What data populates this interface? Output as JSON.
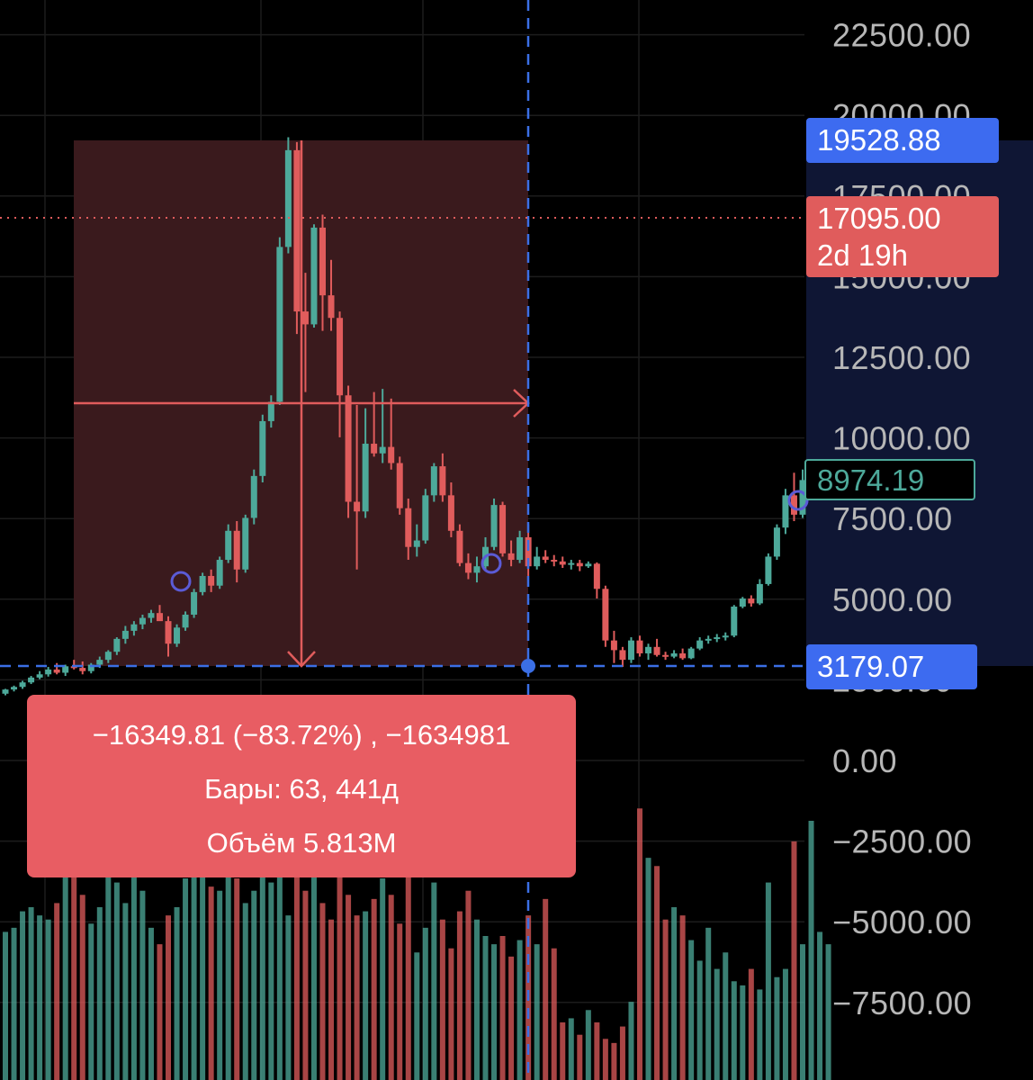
{
  "colors": {
    "background": "#000000",
    "up": "#4da99a",
    "down": "#e05c5c",
    "range_fill": "#3a1a1d",
    "crosshair": "#3b6fe5",
    "price_axis_bg": "#0f1634",
    "tag_blue": "#3d6bf0",
    "tag_red": "#e05c5c",
    "measure_box": "#e85d63",
    "axis_text": "#b7b7b7"
  },
  "price_axis": {
    "ticks": [
      "22500.00",
      "20000.00",
      "17500.00",
      "15000.00",
      "12500.00",
      "10000.00",
      "7500.00",
      "5000.00",
      "2500.00",
      "0.00",
      "−2500.00",
      "−5000.00",
      "−7500.00"
    ]
  },
  "tags": {
    "crosshair_top": "19528.88",
    "last_price": "17095.00",
    "countdown": "2d 19h",
    "current_price": "8974.19",
    "crosshair_bottom": "3179.07"
  },
  "measure": {
    "change": "−16349.81 (−83.72%) , −1634981",
    "bars": "Бары: 63, 441д",
    "volume": "Объём 5.813M"
  },
  "chart_data": {
    "type": "candlestick",
    "y_axis": {
      "min": -7500,
      "max": 22500,
      "tick_step": 2500
    },
    "measure_range": {
      "start_price": 19528.88,
      "end_price": 3179.07,
      "bars": 63,
      "change": -16349.81,
      "change_pct": -83.72
    },
    "last_price": 17095.0,
    "current_price": 8974.19,
    "candles": [
      {
        "o": 2350,
        "h": 2500,
        "l": 2300,
        "c": 2480
      },
      {
        "o": 2480,
        "h": 2600,
        "l": 2420,
        "c": 2560
      },
      {
        "o": 2560,
        "h": 2750,
        "l": 2500,
        "c": 2700
      },
      {
        "o": 2700,
        "h": 2900,
        "l": 2650,
        "c": 2850
      },
      {
        "o": 2850,
        "h": 3050,
        "l": 2800,
        "c": 2950
      },
      {
        "o": 2950,
        "h": 3180,
        "l": 2880,
        "c": 3100
      },
      {
        "o": 3100,
        "h": 3300,
        "l": 2950,
        "c": 3000
      },
      {
        "o": 3000,
        "h": 3250,
        "l": 2900,
        "c": 3200
      },
      {
        "o": 3200,
        "h": 3400,
        "l": 3100,
        "c": 3150
      },
      {
        "o": 3150,
        "h": 3350,
        "l": 2950,
        "c": 3050
      },
      {
        "o": 3050,
        "h": 3300,
        "l": 2980,
        "c": 3250
      },
      {
        "o": 3250,
        "h": 3500,
        "l": 3150,
        "c": 3400
      },
      {
        "o": 3400,
        "h": 3700,
        "l": 3300,
        "c": 3650
      },
      {
        "o": 3650,
        "h": 4100,
        "l": 3550,
        "c": 4050
      },
      {
        "o": 4050,
        "h": 4450,
        "l": 3900,
        "c": 4300
      },
      {
        "o": 4300,
        "h": 4600,
        "l": 4150,
        "c": 4500
      },
      {
        "o": 4500,
        "h": 4800,
        "l": 4350,
        "c": 4700
      },
      {
        "o": 4700,
        "h": 4950,
        "l": 4550,
        "c": 4850
      },
      {
        "o": 4850,
        "h": 5100,
        "l": 4700,
        "c": 4600
      },
      {
        "o": 4600,
        "h": 4750,
        "l": 3500,
        "c": 3900
      },
      {
        "o": 3900,
        "h": 4500,
        "l": 3800,
        "c": 4400
      },
      {
        "o": 4400,
        "h": 4900,
        "l": 4300,
        "c": 4800
      },
      {
        "o": 4800,
        "h": 5600,
        "l": 4700,
        "c": 5500
      },
      {
        "o": 5500,
        "h": 6100,
        "l": 5400,
        "c": 6000
      },
      {
        "o": 6000,
        "h": 6200,
        "l": 5500,
        "c": 5700
      },
      {
        "o": 5700,
        "h": 6600,
        "l": 5600,
        "c": 6500
      },
      {
        "o": 6500,
        "h": 7600,
        "l": 6400,
        "c": 7400
      },
      {
        "o": 7400,
        "h": 7700,
        "l": 5800,
        "c": 6200
      },
      {
        "o": 6200,
        "h": 7900,
        "l": 6100,
        "c": 7800
      },
      {
        "o": 7800,
        "h": 9300,
        "l": 7600,
        "c": 9100
      },
      {
        "o": 9100,
        "h": 11000,
        "l": 8900,
        "c": 10800
      },
      {
        "o": 10800,
        "h": 11600,
        "l": 10600,
        "c": 11400
      },
      {
        "o": 11400,
        "h": 16500,
        "l": 11300,
        "c": 16200
      },
      {
        "o": 16200,
        "h": 19600,
        "l": 16000,
        "c": 19200
      },
      {
        "o": 19200,
        "h": 19450,
        "l": 13500,
        "c": 14200
      },
      {
        "o": 14200,
        "h": 15400,
        "l": 11700,
        "c": 13800
      },
      {
        "o": 13800,
        "h": 16900,
        "l": 13700,
        "c": 16800
      },
      {
        "o": 16800,
        "h": 17200,
        "l": 13600,
        "c": 14700
      },
      {
        "o": 14700,
        "h": 15800,
        "l": 13600,
        "c": 14000
      },
      {
        "o": 14000,
        "h": 14200,
        "l": 10300,
        "c": 11600
      },
      {
        "o": 11600,
        "h": 11900,
        "l": 7800,
        "c": 8300
      },
      {
        "o": 8300,
        "h": 11300,
        "l": 6200,
        "c": 8000
      },
      {
        "o": 8000,
        "h": 11200,
        "l": 7800,
        "c": 10100
      },
      {
        "o": 10100,
        "h": 11700,
        "l": 9700,
        "c": 9800
      },
      {
        "o": 9800,
        "h": 11800,
        "l": 9500,
        "c": 10000
      },
      {
        "o": 10000,
        "h": 11500,
        "l": 9300,
        "c": 9500
      },
      {
        "o": 9500,
        "h": 9700,
        "l": 7900,
        "c": 8100
      },
      {
        "o": 8100,
        "h": 8400,
        "l": 6500,
        "c": 6900
      },
      {
        "o": 6900,
        "h": 7600,
        "l": 6600,
        "c": 7100
      },
      {
        "o": 7100,
        "h": 8700,
        "l": 7000,
        "c": 8500
      },
      {
        "o": 8500,
        "h": 9500,
        "l": 8300,
        "c": 9400
      },
      {
        "o": 9400,
        "h": 9800,
        "l": 8300,
        "c": 8500
      },
      {
        "o": 8500,
        "h": 8900,
        "l": 7200,
        "c": 7400
      },
      {
        "o": 7400,
        "h": 7600,
        "l": 6300,
        "c": 6400
      },
      {
        "o": 6400,
        "h": 6700,
        "l": 5900,
        "c": 6100
      },
      {
        "o": 6100,
        "h": 6600,
        "l": 5800,
        "c": 6300
      },
      {
        "o": 6300,
        "h": 7200,
        "l": 6200,
        "c": 6900
      },
      {
        "o": 6900,
        "h": 8400,
        "l": 6800,
        "c": 8200
      },
      {
        "o": 8200,
        "h": 8300,
        "l": 6600,
        "c": 6700
      },
      {
        "o": 6700,
        "h": 7100,
        "l": 6300,
        "c": 6500
      },
      {
        "o": 6500,
        "h": 7400,
        "l": 6400,
        "c": 7200
      },
      {
        "o": 7200,
        "h": 7600,
        "l": 6000,
        "c": 6300
      },
      {
        "o": 6300,
        "h": 6900,
        "l": 6200,
        "c": 6600
      },
      {
        "o": 6600,
        "h": 6800,
        "l": 6400,
        "c": 6500
      },
      {
        "o": 6500,
        "h": 6650,
        "l": 6300,
        "c": 6450
      },
      {
        "o": 6450,
        "h": 6600,
        "l": 6250,
        "c": 6350
      },
      {
        "o": 6350,
        "h": 6500,
        "l": 6200,
        "c": 6400
      },
      {
        "o": 6400,
        "h": 6500,
        "l": 6150,
        "c": 6300
      },
      {
        "o": 6300,
        "h": 6450,
        "l": 6250,
        "c": 6380
      },
      {
        "o": 6380,
        "h": 6420,
        "l": 5300,
        "c": 5600
      },
      {
        "o": 5600,
        "h": 5700,
        "l": 3800,
        "c": 4000
      },
      {
        "o": 4000,
        "h": 4300,
        "l": 3300,
        "c": 3700
      },
      {
        "o": 3700,
        "h": 3800,
        "l": 3180,
        "c": 3400
      },
      {
        "o": 3400,
        "h": 4100,
        "l": 3300,
        "c": 4000
      },
      {
        "o": 4000,
        "h": 4150,
        "l": 3500,
        "c": 3600
      },
      {
        "o": 3600,
        "h": 3900,
        "l": 3400,
        "c": 3800
      },
      {
        "o": 3800,
        "h": 4050,
        "l": 3500,
        "c": 3550
      },
      {
        "o": 3550,
        "h": 3650,
        "l": 3400,
        "c": 3500
      },
      {
        "o": 3500,
        "h": 3700,
        "l": 3450,
        "c": 3600
      },
      {
        "o": 3600,
        "h": 3750,
        "l": 3400,
        "c": 3450
      },
      {
        "o": 3450,
        "h": 3800,
        "l": 3420,
        "c": 3750
      },
      {
        "o": 3750,
        "h": 4100,
        "l": 3700,
        "c": 4000
      },
      {
        "o": 4000,
        "h": 4150,
        "l": 3900,
        "c": 4050
      },
      {
        "o": 4050,
        "h": 4200,
        "l": 3950,
        "c": 4100
      },
      {
        "o": 4100,
        "h": 4250,
        "l": 4000,
        "c": 4150
      },
      {
        "o": 4150,
        "h": 5100,
        "l": 4100,
        "c": 5050
      },
      {
        "o": 5050,
        "h": 5350,
        "l": 5000,
        "c": 5300
      },
      {
        "o": 5300,
        "h": 5400,
        "l": 5050,
        "c": 5150
      },
      {
        "o": 5150,
        "h": 5900,
        "l": 5100,
        "c": 5750
      },
      {
        "o": 5750,
        "h": 6700,
        "l": 5700,
        "c": 6600
      },
      {
        "o": 6600,
        "h": 7600,
        "l": 6500,
        "c": 7500
      },
      {
        "o": 7500,
        "h": 8700,
        "l": 7300,
        "c": 8500
      },
      {
        "o": 8500,
        "h": 9200,
        "l": 7700,
        "c": 7900
      },
      {
        "o": 7900,
        "h": 9300,
        "l": 7800,
        "c": 8974
      }
    ],
    "volume": [
      3600,
      3700,
      4100,
      4200,
      4000,
      3900,
      4300,
      5200,
      5300,
      4500,
      3800,
      4200,
      5000,
      4800,
      4300,
      5400,
      4600,
      3700,
      3300,
      4000,
      4200,
      4900,
      6100,
      5500,
      4700,
      4600,
      5100,
      4900,
      4300,
      4600,
      5200,
      4800,
      5100,
      4000,
      5600,
      4600,
      5000,
      4300,
      3900,
      5300,
      4500,
      4000,
      4100,
      4400,
      4900,
      4500,
      3800,
      5000,
      3100,
      3700,
      4800,
      3900,
      3200,
      4100,
      4600,
      3900,
      3500,
      3300,
      3500,
      3000,
      3400,
      4000,
      3300,
      4400,
      3200,
      1400,
      1500,
      1100,
      1700,
      1400,
      1000,
      900,
      1300,
      1900,
      6600,
      5400,
      5200,
      3900,
      4200,
      4000,
      3400,
      2900,
      3700,
      2700,
      3100,
      2400,
      2300,
      2700,
      2200,
      4800,
      2500,
      2700,
      5800,
      3300,
      6300,
      3600,
      3300
    ]
  }
}
